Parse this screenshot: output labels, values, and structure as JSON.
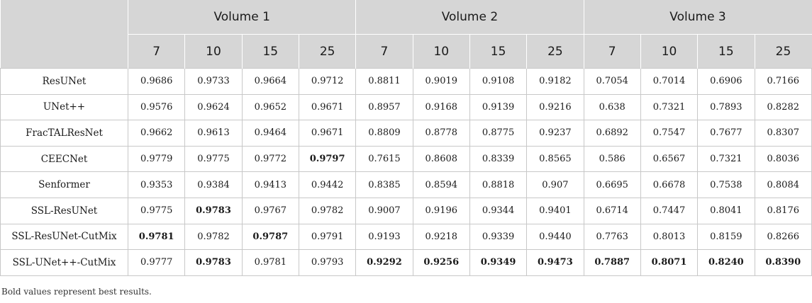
{
  "table": {
    "volumes": [
      "Volume 1",
      "Volume 2",
      "Volume 3"
    ],
    "subheaders": [
      "7",
      "10",
      "15",
      "25",
      "7",
      "10",
      "15",
      "25",
      "7",
      "10",
      "15",
      "25"
    ],
    "rows": [
      {
        "model": "ResUNet",
        "values": [
          "0.9686",
          "0.9733",
          "0.9664",
          "0.9712",
          "0.8811",
          "0.9019",
          "0.9108",
          "0.9182",
          "0.7054",
          "0.7014",
          "0.6906",
          "0.7166"
        ],
        "bold": []
      },
      {
        "model": "UNet++",
        "values": [
          "0.9576",
          "0.9624",
          "0.9652",
          "0.9671",
          "0.8957",
          "0.9168",
          "0.9139",
          "0.9216",
          "0.638",
          "0.7321",
          "0.7893",
          "0.8282"
        ],
        "bold": []
      },
      {
        "model": "FracTALResNet",
        "values": [
          "0.9662",
          "0.9613",
          "0.9464",
          "0.9671",
          "0.8809",
          "0.8778",
          "0.8775",
          "0.9237",
          "0.6892",
          "0.7547",
          "0.7677",
          "0.8307"
        ],
        "bold": []
      },
      {
        "model": "CEECNet",
        "values": [
          "0.9779",
          "0.9775",
          "0.9772",
          "0.9797",
          "0.7615",
          "0.8608",
          "0.8339",
          "0.8565",
          "0.586",
          "0.6567",
          "0.7321",
          "0.8036"
        ],
        "bold": [
          3
        ]
      },
      {
        "model": "Senformer",
        "values": [
          "0.9353",
          "0.9384",
          "0.9413",
          "0.9442",
          "0.8385",
          "0.8594",
          "0.8818",
          "0.907",
          "0.6695",
          "0.6678",
          "0.7538",
          "0.8084"
        ],
        "bold": []
      },
      {
        "model": "SSL-ResUNet",
        "values": [
          "0.9775",
          "0.9783",
          "0.9767",
          "0.9782",
          "0.9007",
          "0.9196",
          "0.9344",
          "0.9401",
          "0.6714",
          "0.7447",
          "0.8041",
          "0.8176"
        ],
        "bold": [
          1
        ]
      },
      {
        "model": "SSL-ResUNet-CutMix",
        "values": [
          "0.9781",
          "0.9782",
          "0.9787",
          "0.9791",
          "0.9193",
          "0.9218",
          "0.9339",
          "0.9440",
          "0.7763",
          "0.8013",
          "0.8159",
          "0.8266"
        ],
        "bold": [
          0,
          2
        ]
      },
      {
        "model": "SSL-UNet++-CutMix",
        "values": [
          "0.9777",
          "0.9783",
          "0.9781",
          "0.9793",
          "0.9292",
          "0.9256",
          "0.9349",
          "0.9473",
          "0.7887",
          "0.8071",
          "0.8240",
          "0.8390"
        ],
        "bold": [
          1,
          4,
          5,
          6,
          7,
          8,
          9,
          10,
          11
        ]
      }
    ]
  },
  "footnote": "Bold values represent best results."
}
